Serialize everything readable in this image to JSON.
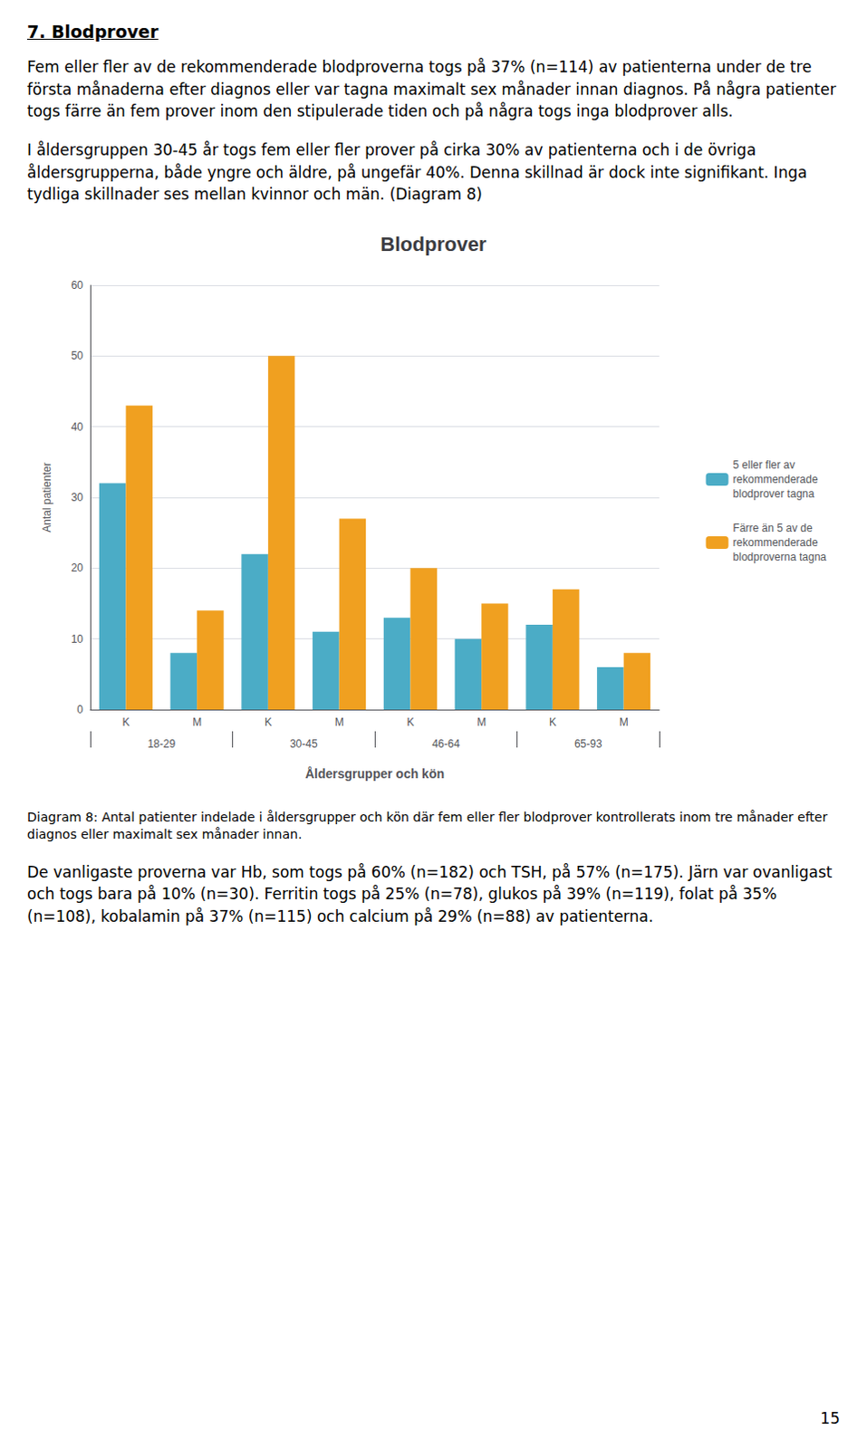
{
  "heading": "7. Blodprover",
  "text_before": [
    "Fem eller fler av de rekommenderade blodproverna togs på 37% (n=114) av patienterna under de tre första månaderna efter diagnos eller var tagna maximalt sex månader innan diagnos. På några patienter togs färre än fem prover inom den stipulerade tiden och på några togs inga blodprover alls.",
    "I åldersgruppen 30-45 år togs fem eller fler prover på cirka 30% av patienterna och i de övriga åldersgrupperna, både yngre och äldre, på ungefär 40%. Denna skillnad är dock inte signifikant. Inga tydliga skillnader ses mellan kvinnor och män. (Diagram 8)"
  ],
  "caption": "Diagram 8: Antal patienter indelade i åldersgrupper och kön där fem eller fler blodprover kontrollerats inom tre månader efter diagnos eller maximalt sex månader innan.",
  "text_after": [
    "De vanligaste proverna var Hb, som togs på 60% (n=182) och TSH, på 57% (n=175). Järn var ovanligast och togs bara på 10% (n=30). Ferritin togs på 25% (n=78), glukos på 39% (n=119), folat på 35% (n=108), kobalamin på 37% (n=115) och calcium på 29% (n=88) av patienterna."
  ],
  "page_number": "15",
  "chart_data": {
    "type": "bar",
    "title": "Blodprover",
    "xlabel": "Åldersgrupper och kön",
    "ylabel": "Antal patienter",
    "categories": [
      "K",
      "M",
      "K",
      "M",
      "K",
      "M",
      "K",
      "M"
    ],
    "groups": [
      "18-29",
      "30-45",
      "46-64",
      "65-93"
    ],
    "series": [
      {
        "name": "5 eller fler av\nrekommenderade\nblodprover tagna",
        "color": "#4BACC6",
        "values": [
          32,
          8,
          22,
          11,
          13,
          10,
          12,
          6
        ]
      },
      {
        "name": "Färre än 5 av de\nrekommenderade\nblodproverna tagna",
        "color": "#F0A020",
        "values": [
          43,
          14,
          50,
          27,
          20,
          15,
          17,
          8
        ]
      }
    ],
    "ylim": [
      0,
      60
    ],
    "yticks": [
      0,
      10,
      20,
      30,
      40,
      50,
      60
    ],
    "grid": true,
    "legend": "right"
  }
}
